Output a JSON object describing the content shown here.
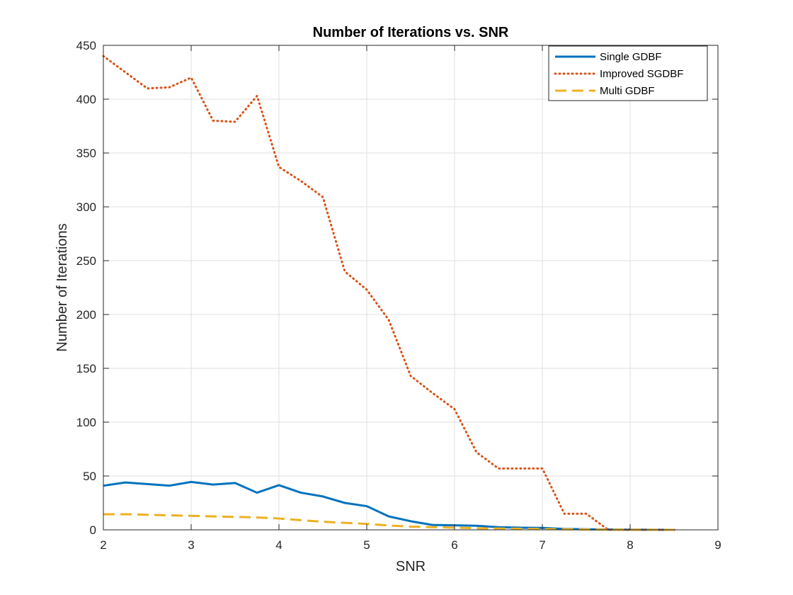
{
  "chart_data": {
    "type": "line",
    "title": "Number of Iterations vs. SNR",
    "xlabel": "SNR",
    "ylabel": "Number of Iterations",
    "xlim": [
      2,
      9
    ],
    "ylim": [
      0,
      450
    ],
    "xticks": [
      2,
      3,
      4,
      5,
      6,
      7,
      8,
      9
    ],
    "yticks": [
      0,
      50,
      100,
      150,
      200,
      250,
      300,
      350,
      400,
      450
    ],
    "grid": true,
    "legend_position": "top-right",
    "x": [
      2,
      2.25,
      2.5,
      2.75,
      3,
      3.25,
      3.5,
      3.75,
      4,
      4.25,
      4.5,
      4.75,
      5,
      5.25,
      5.5,
      5.75,
      6,
      6.25,
      6.5,
      6.75,
      7,
      7.25,
      7.5,
      7.75,
      8,
      8.25,
      8.5
    ],
    "series": [
      {
        "name": "Single GDBF",
        "color": "#0072BD",
        "style": "solid",
        "values": [
          41,
          44,
          42.5,
          41,
          44.5,
          42,
          43.5,
          34.5,
          41.5,
          34.5,
          31,
          25,
          22,
          12.5,
          8,
          4.5,
          4.2,
          3.8,
          2.5,
          2,
          1.8,
          0.8,
          0.5,
          0.3,
          0.2,
          0.1,
          0
        ]
      },
      {
        "name": "Improved SGDBF",
        "color": "#D95319",
        "style": "dotted",
        "values": [
          440,
          425,
          410,
          411,
          420,
          380,
          379,
          403,
          337,
          324,
          309,
          240,
          223,
          195,
          143,
          127,
          112,
          72,
          57,
          57,
          57,
          15,
          15,
          0,
          0,
          0,
          0
        ]
      },
      {
        "name": "Multi GDBF",
        "color": "#EDB120",
        "style": "dashed",
        "values": [
          14.5,
          14.5,
          14,
          13.5,
          13,
          12.5,
          12,
          11.5,
          10.5,
          9,
          7.5,
          6.5,
          5.5,
          4,
          3,
          2.5,
          2,
          1.5,
          1.2,
          1,
          0.8,
          0.5,
          0.3,
          0.2,
          0.1,
          0.05,
          0
        ]
      }
    ]
  }
}
